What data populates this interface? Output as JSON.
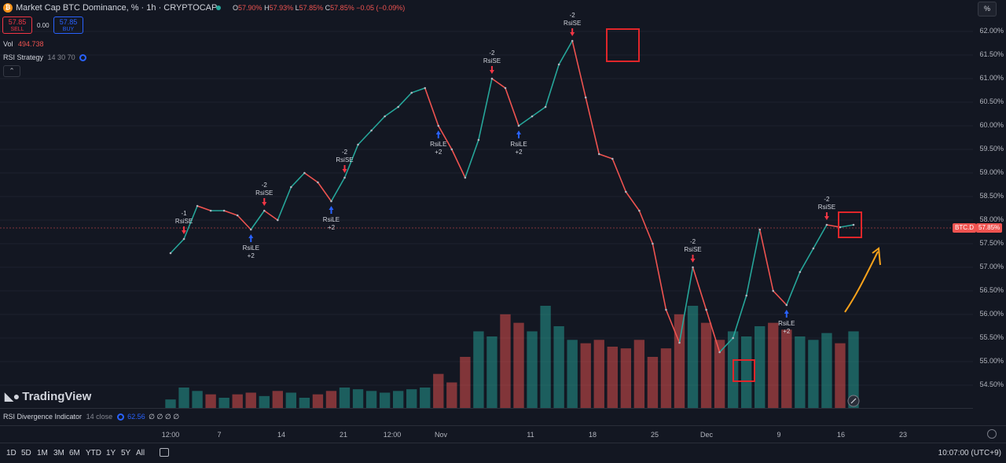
{
  "header": {
    "symbol_title": "Market Cap BTC Dominance, % · 1h · CRYPTOCAP",
    "ohlc": {
      "o_label": "O",
      "o": "57.90%",
      "h_label": "H",
      "h": "57.93%",
      "l_label": "L",
      "l": "57.85%",
      "c_label": "C",
      "c": "57.85%",
      "change": "−0.05 (−0.09%)"
    },
    "sell_price": "57.85",
    "sell_label": "SELL",
    "spread": "0.00",
    "buy_price": "57.85",
    "buy_label": "BUY",
    "vol_label": "Vol",
    "vol_value": "494.738",
    "strategy_label": "RSI Strategy",
    "strategy_params": "14 30 70",
    "collapse_icon": "chevron-up-icon"
  },
  "price_axis": {
    "unit_button": "%",
    "ticks": [
      "62.00%",
      "61.50%",
      "61.00%",
      "60.50%",
      "60.00%",
      "59.50%",
      "59.00%",
      "58.50%",
      "58.00%",
      "57.50%",
      "57.00%",
      "56.50%",
      "56.00%",
      "55.50%",
      "55.00%",
      "54.50%"
    ],
    "symbol_tag": "BTC.D",
    "current_price_tag": "57.85%"
  },
  "time_axis": {
    "ticks": [
      "12:00",
      "7",
      "14",
      "21",
      "12:00",
      "Nov",
      "11",
      "18",
      "25",
      "Dec",
      "9",
      "16",
      "23"
    ]
  },
  "indicator_pane": {
    "label": "RSI Divergence Indicator",
    "params": "14 close",
    "value": "62.56",
    "placeholders": "∅ ∅ ∅ ∅"
  },
  "branding": {
    "logo_text": "TradingView"
  },
  "timeframes": [
    "1D",
    "5D",
    "1M",
    "3M",
    "6M",
    "YTD",
    "1Y",
    "5Y",
    "All"
  ],
  "clock": "10:07:00 (UTC+9)",
  "colors": {
    "background": "#131722",
    "up": "#26a69a",
    "down": "#ef5350",
    "sell": "#f23645",
    "buy": "#2962ff",
    "annotation": "#f7a21b",
    "highlight_box": "#e0262a"
  },
  "chart_data": {
    "type": "line",
    "title": "Market Cap BTC Dominance, %",
    "ylabel": "%",
    "ylim": [
      54.2,
      62.3
    ],
    "x": [
      "Oct 2",
      "Oct 3",
      "Oct 4",
      "Oct 6",
      "Oct 7",
      "Oct 9",
      "Oct 10",
      "Oct 11",
      "Oct 13",
      "Oct 15",
      "Oct 17",
      "Oct 19",
      "Oct 21",
      "Oct 23",
      "Oct 25",
      "Oct 27",
      "Oct 29",
      "Oct 31",
      "Nov 3",
      "Nov 5",
      "Nov 7",
      "Nov 8",
      "Nov 10",
      "Nov 12",
      "Nov 14",
      "Nov 16",
      "Nov 17",
      "Nov 19",
      "Nov 20",
      "Nov 21",
      "Nov 22",
      "Nov 23",
      "Nov 24",
      "Nov 25",
      "Nov 27",
      "Nov 29",
      "Dec 1",
      "Dec 3",
      "Dec 4",
      "Dec 5",
      "Dec 6",
      "Dec 7",
      "Dec 8",
      "Dec 9",
      "Dec 10",
      "Dec 11",
      "Dec 12",
      "Dec 13",
      "Dec 14",
      "Dec 15",
      "Dec 16",
      "Dec 17"
    ],
    "values": [
      57.3,
      57.6,
      58.3,
      58.2,
      58.2,
      58.1,
      57.8,
      58.2,
      58.0,
      58.7,
      59.0,
      58.8,
      58.4,
      58.9,
      59.6,
      59.9,
      60.2,
      60.4,
      60.7,
      60.8,
      60.0,
      59.5,
      58.9,
      59.7,
      61.0,
      60.8,
      60.0,
      60.2,
      60.4,
      61.3,
      61.8,
      60.6,
      59.4,
      59.3,
      58.6,
      58.2,
      57.5,
      56.1,
      55.4,
      57.0,
      56.1,
      55.2,
      55.5,
      56.4,
      57.8,
      56.5,
      56.2,
      56.9,
      57.4,
      57.9,
      57.85,
      57.9
    ],
    "volume": [
      5,
      12,
      10,
      8,
      6,
      8,
      9,
      7,
      10,
      9,
      6,
      8,
      10,
      12,
      11,
      10,
      9,
      10,
      11,
      12,
      20,
      15,
      30,
      45,
      42,
      55,
      50,
      45,
      60,
      48,
      40,
      38,
      40,
      36,
      35,
      40,
      30,
      35,
      55,
      60,
      50,
      40,
      45,
      42,
      48,
      50,
      46,
      42,
      40,
      44,
      38,
      45
    ],
    "signals": [
      {
        "label": "RsiSE",
        "qty": "-1",
        "dir": "down",
        "x": "Oct 3"
      },
      {
        "label": "RsiLE",
        "qty": "+2",
        "dir": "up",
        "x": "Oct 10"
      },
      {
        "label": "RsiSE",
        "qty": "-2",
        "dir": "down",
        "x": "Oct 11"
      },
      {
        "label": "RsiLE",
        "qty": "+2",
        "dir": "up",
        "x": "Oct 21"
      },
      {
        "label": "RsiSE",
        "qty": "-2",
        "dir": "down",
        "x": "Oct 23"
      },
      {
        "label": "RsiLE",
        "qty": "+2",
        "dir": "up",
        "x": "Nov 7"
      },
      {
        "label": "RsiSE",
        "qty": "-2",
        "dir": "down",
        "x": "Nov 14"
      },
      {
        "label": "RsiLE",
        "qty": "+2",
        "dir": "up",
        "x": "Nov 17"
      },
      {
        "label": "RsiSE",
        "qty": "-2",
        "dir": "down",
        "x": "Nov 22"
      },
      {
        "label": "RsiSE",
        "qty": "-2",
        "dir": "down",
        "x": "Dec 5"
      },
      {
        "label": "RsiLE",
        "qty": "+2",
        "dir": "up",
        "x": "Dec 12"
      },
      {
        "label": "RsiSE",
        "qty": "-2",
        "dir": "down",
        "x": "Dec 15"
      }
    ]
  }
}
